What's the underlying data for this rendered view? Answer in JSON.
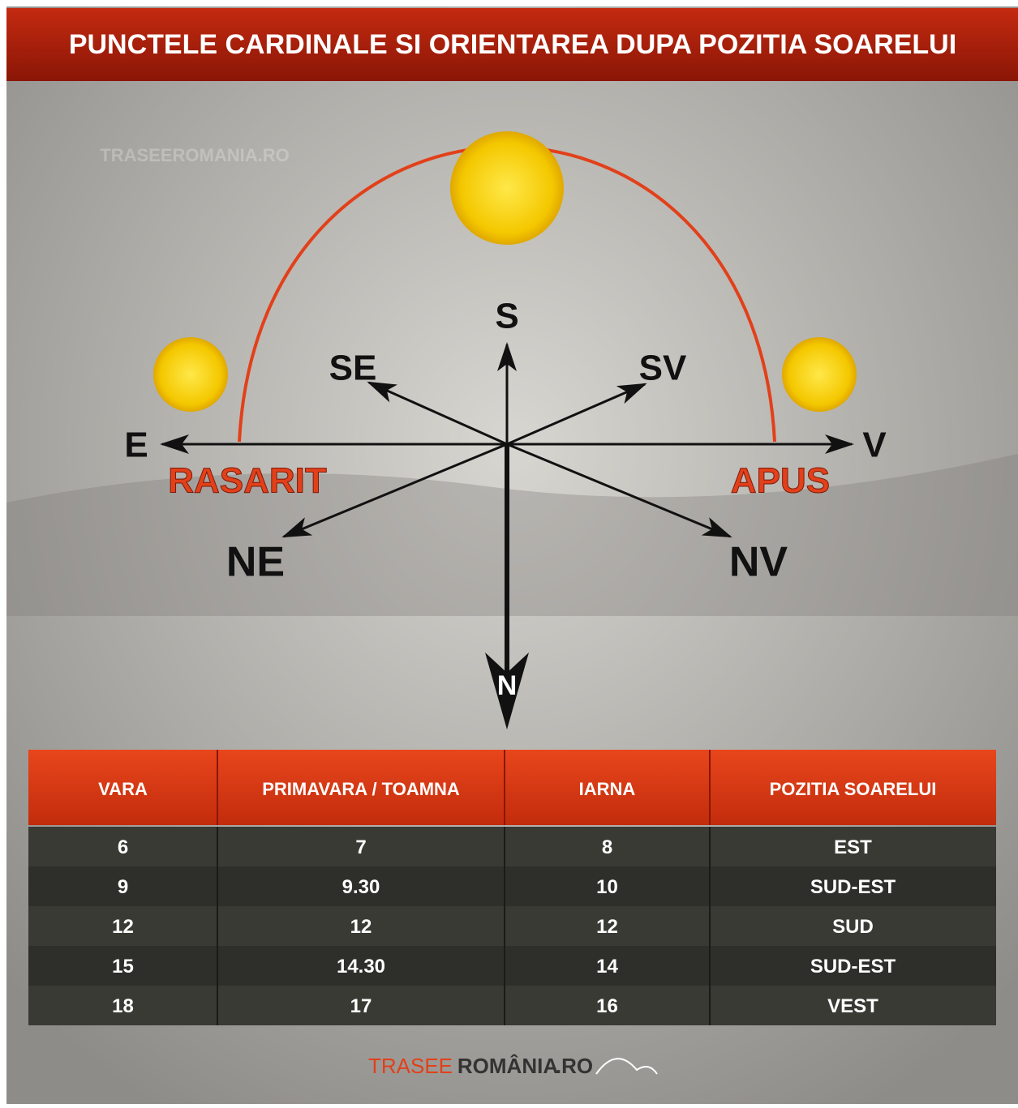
{
  "header": {
    "title": "PUNCTELE CARDINALE SI ORIENTAREA DUPA POZITIA SOARELUI"
  },
  "watermark": "TRASEEROMANIA.RO",
  "compass": {
    "south": "S",
    "north": "N",
    "east": "E",
    "west": "V",
    "southeast": "SE",
    "southwest": "SV",
    "northeast": "NE",
    "northwest": "NV",
    "sunrise": "RASARIT",
    "sunset": "APUS"
  },
  "table": {
    "headers": [
      "VARA",
      "PRIMAVARA / TOAMNA",
      "IARNA",
      "POZITIA SOARELUI"
    ],
    "rows": [
      [
        "6",
        "7",
        "8",
        "EST"
      ],
      [
        "9",
        "9.30",
        "10",
        "SUD-EST"
      ],
      [
        "12",
        "12",
        "12",
        "SUD"
      ],
      [
        "15",
        "14.30",
        "14",
        "SUD-EST"
      ],
      [
        "18",
        "17",
        "16",
        "VEST"
      ]
    ]
  },
  "footer": {
    "logo_part1": "TRASEE",
    "logo_part2": "ROMÂNIA",
    "logo_part3": ".RO"
  }
}
